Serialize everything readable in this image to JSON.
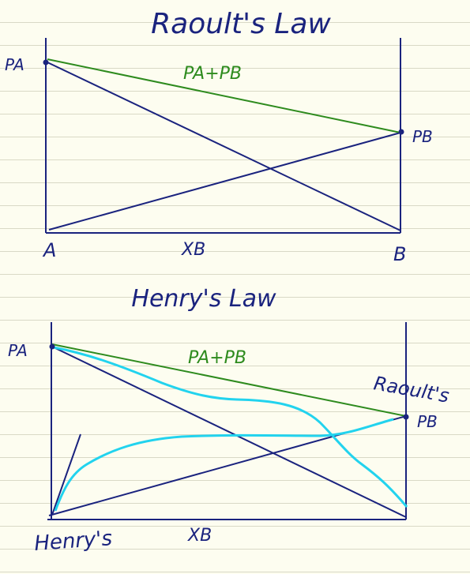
{
  "diagram1": {
    "title": "Raoult's Law",
    "label_pa": "PA",
    "label_pb": "PB",
    "label_sum": "PA+PB",
    "label_a": "A",
    "label_b": "B",
    "label_xb": "XB"
  },
  "diagram2": {
    "title": "Henry's Law",
    "label_pa": "PA",
    "label_pb": "PB",
    "label_sum": "PA+PB",
    "label_raoults": "Raoult's",
    "label_henrys": "Henry's",
    "label_xb": "XB"
  },
  "colors": {
    "ink_blue": "#1a237e",
    "ink_green": "#2e8b1e",
    "ink_cyan": "#22d3ee",
    "paper": "#fdfdf0",
    "rule_line": "#d9d9c6"
  }
}
